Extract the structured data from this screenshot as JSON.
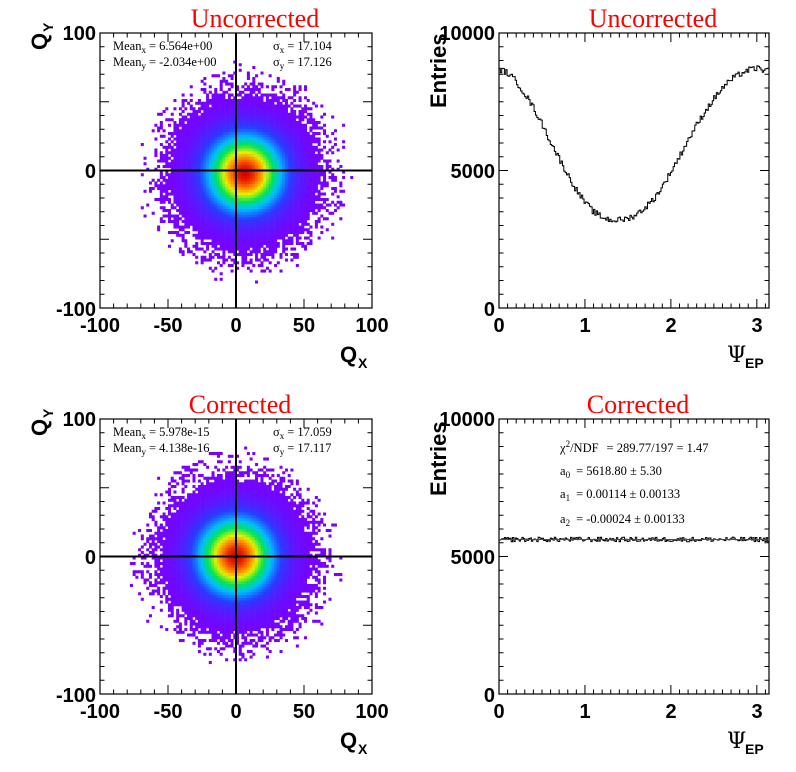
{
  "chart_data": [
    {
      "id": "qxqy-uncorrected",
      "type": "heatmap",
      "title": "Uncorrected",
      "xlabel": "Q",
      "xlabel_sub": "X",
      "ylabel": "Q",
      "ylabel_sub": "Y",
      "xlim": [
        -100,
        100
      ],
      "ylim": [
        -100,
        100
      ],
      "xticks": [
        -100,
        -50,
        0,
        50,
        100
      ],
      "yticks": [
        -100,
        0,
        100
      ],
      "center": [
        6.564,
        -2.034
      ],
      "sigma": [
        17.104,
        17.126
      ],
      "stats": {
        "mean_x_label": "Mean",
        "mean_x_sub": "x",
        "mean_x_value": "= 6.564e+00",
        "mean_y_label": "Mean",
        "mean_y_sub": "y",
        "mean_y_value": "= -2.034e+00",
        "sigma_x_label": "σ",
        "sigma_x_sub": "x",
        "sigma_x_value": "= 17.104",
        "sigma_y_label": "σ",
        "sigma_y_sub": "y",
        "sigma_y_value": "= 17.126"
      }
    },
    {
      "id": "psi-uncorrected",
      "type": "line",
      "title": "Uncorrected",
      "xlabel": "Ψ",
      "xlabel_sub": "EP",
      "ylabel": "Entries",
      "xlim": [
        0,
        3.14159
      ],
      "ylim": [
        0,
        10000
      ],
      "xticks": [
        0,
        1,
        2,
        3
      ],
      "yticks": [
        0,
        5000,
        10000
      ],
      "x": [
        0,
        0.1,
        0.2,
        0.3,
        0.4,
        0.5,
        0.6,
        0.7,
        0.8,
        0.9,
        1.0,
        1.1,
        1.2,
        1.3,
        1.4,
        1.5,
        1.6,
        1.7,
        1.8,
        1.9,
        2.0,
        2.1,
        2.2,
        2.3,
        2.4,
        2.5,
        2.6,
        2.7,
        2.8,
        2.9,
        3.0,
        3.1,
        3.14
      ],
      "y": [
        8700,
        8550,
        8250,
        7800,
        7300,
        6700,
        6050,
        5450,
        4850,
        4300,
        3850,
        3500,
        3300,
        3200,
        3200,
        3250,
        3400,
        3650,
        3950,
        4400,
        4950,
        5500,
        6100,
        6650,
        7150,
        7600,
        8000,
        8300,
        8500,
        8650,
        8720,
        8650,
        8600
      ],
      "series_color": "#000000"
    },
    {
      "id": "qxqy-corrected",
      "type": "heatmap",
      "title": "Corrected",
      "xlabel": "Q",
      "xlabel_sub": "X",
      "ylabel": "Q",
      "ylabel_sub": "Y",
      "xlim": [
        -100,
        100
      ],
      "ylim": [
        -100,
        100
      ],
      "xticks": [
        -100,
        -50,
        0,
        50,
        100
      ],
      "yticks": [
        -100,
        0,
        100
      ],
      "center": [
        0,
        0
      ],
      "sigma": [
        17.059,
        17.117
      ],
      "stats": {
        "mean_x_label": "Mean",
        "mean_x_sub": "x",
        "mean_x_value": "= 5.978e-15",
        "mean_y_label": "Mean",
        "mean_y_sub": "y",
        "mean_y_value": "= 4.138e-16",
        "sigma_x_label": "σ",
        "sigma_x_sub": "x",
        "sigma_x_value": "= 17.059",
        "sigma_y_label": "σ",
        "sigma_y_sub": "y",
        "sigma_y_value": "= 17.117"
      }
    },
    {
      "id": "psi-corrected",
      "type": "line",
      "title": "Corrected",
      "xlabel": "Ψ",
      "xlabel_sub": "EP",
      "ylabel": "Entries",
      "xlim": [
        0,
        3.14159
      ],
      "ylim": [
        0,
        10000
      ],
      "xticks": [
        0,
        1,
        2,
        3
      ],
      "yticks": [
        0,
        5000,
        10000
      ],
      "x": [
        0,
        0.5,
        1.0,
        1.5,
        2.0,
        2.5,
        3.0,
        3.14
      ],
      "y": [
        5619,
        5619,
        5619,
        5619,
        5619,
        5619,
        5619,
        5619
      ],
      "series_color": "#000000",
      "fit_color": "#ff0000",
      "fit": {
        "chi2_label": "χ",
        "chi2_sup": "2",
        "chi2_text": "/NDF",
        "chi2_value": "= 289.77/197 = 1.47",
        "a0_label": "a",
        "a0_sub": "0",
        "a0_value": "= 5618.80 ± 5.30",
        "a1_label": "a",
        "a1_sub": "1",
        "a1_value": "= 0.00114 ± 0.00133",
        "a2_label": "a",
        "a2_sub": "2",
        "a2_value": "= -0.00024 ± 0.00133"
      }
    }
  ]
}
